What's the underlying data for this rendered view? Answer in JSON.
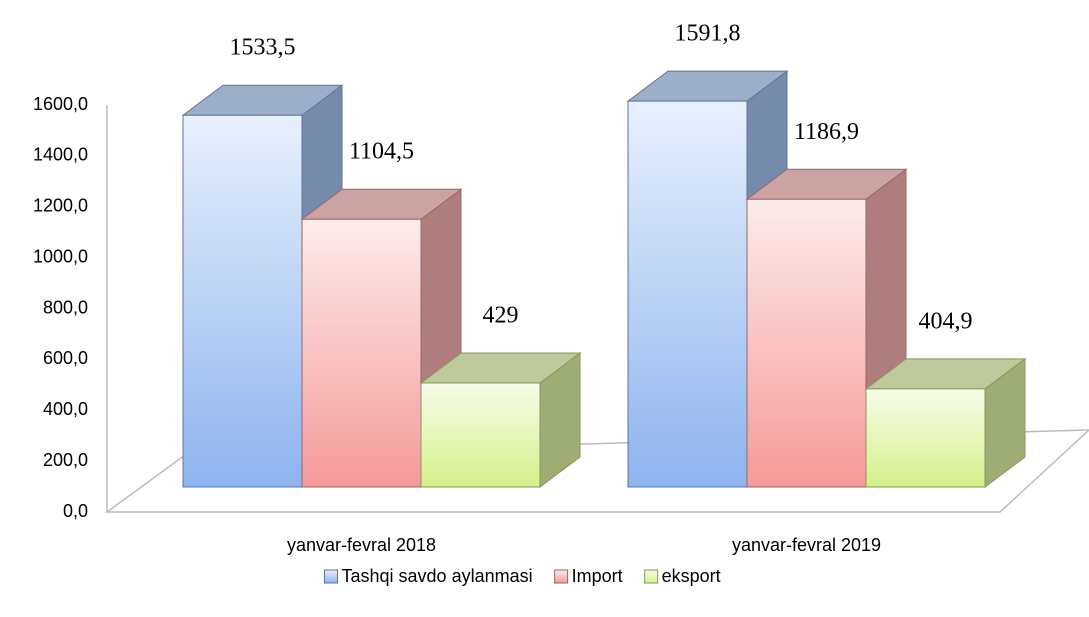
{
  "chart_data": {
    "type": "bar3d",
    "categories": [
      "yanvar-fevral 2018",
      "yanvar-fevral 2019"
    ],
    "series": [
      {
        "name": "Tashqi savdo aylanmasi",
        "color": "#8db3ef",
        "values": [
          1533.5,
          1591.8
        ],
        "value_labels": [
          "1533,5",
          "1591,8"
        ]
      },
      {
        "name": "Import",
        "color": "#f59a9a",
        "values": [
          1104.5,
          1186.9
        ],
        "value_labels": [
          "1104,5",
          "1186,9"
        ]
      },
      {
        "name": "eksport",
        "color": "#d6f08a",
        "values": [
          429,
          404.9
        ],
        "value_labels": [
          "429",
          "404,9"
        ]
      }
    ],
    "ylim": [
      0,
      1600
    ],
    "yticks": [
      {
        "value": 0,
        "label": "0,0"
      },
      {
        "value": 200,
        "label": "200,0"
      },
      {
        "value": 400,
        "label": "400,0"
      },
      {
        "value": 600,
        "label": "600,0"
      },
      {
        "value": 800,
        "label": "800,0"
      },
      {
        "value": 1000,
        "label": "1000,0"
      },
      {
        "value": 1200,
        "label": "1200,0"
      },
      {
        "value": 1400,
        "label": "1400,0"
      },
      {
        "value": 1600,
        "label": "1600,0"
      }
    ],
    "legend": "bottom"
  }
}
